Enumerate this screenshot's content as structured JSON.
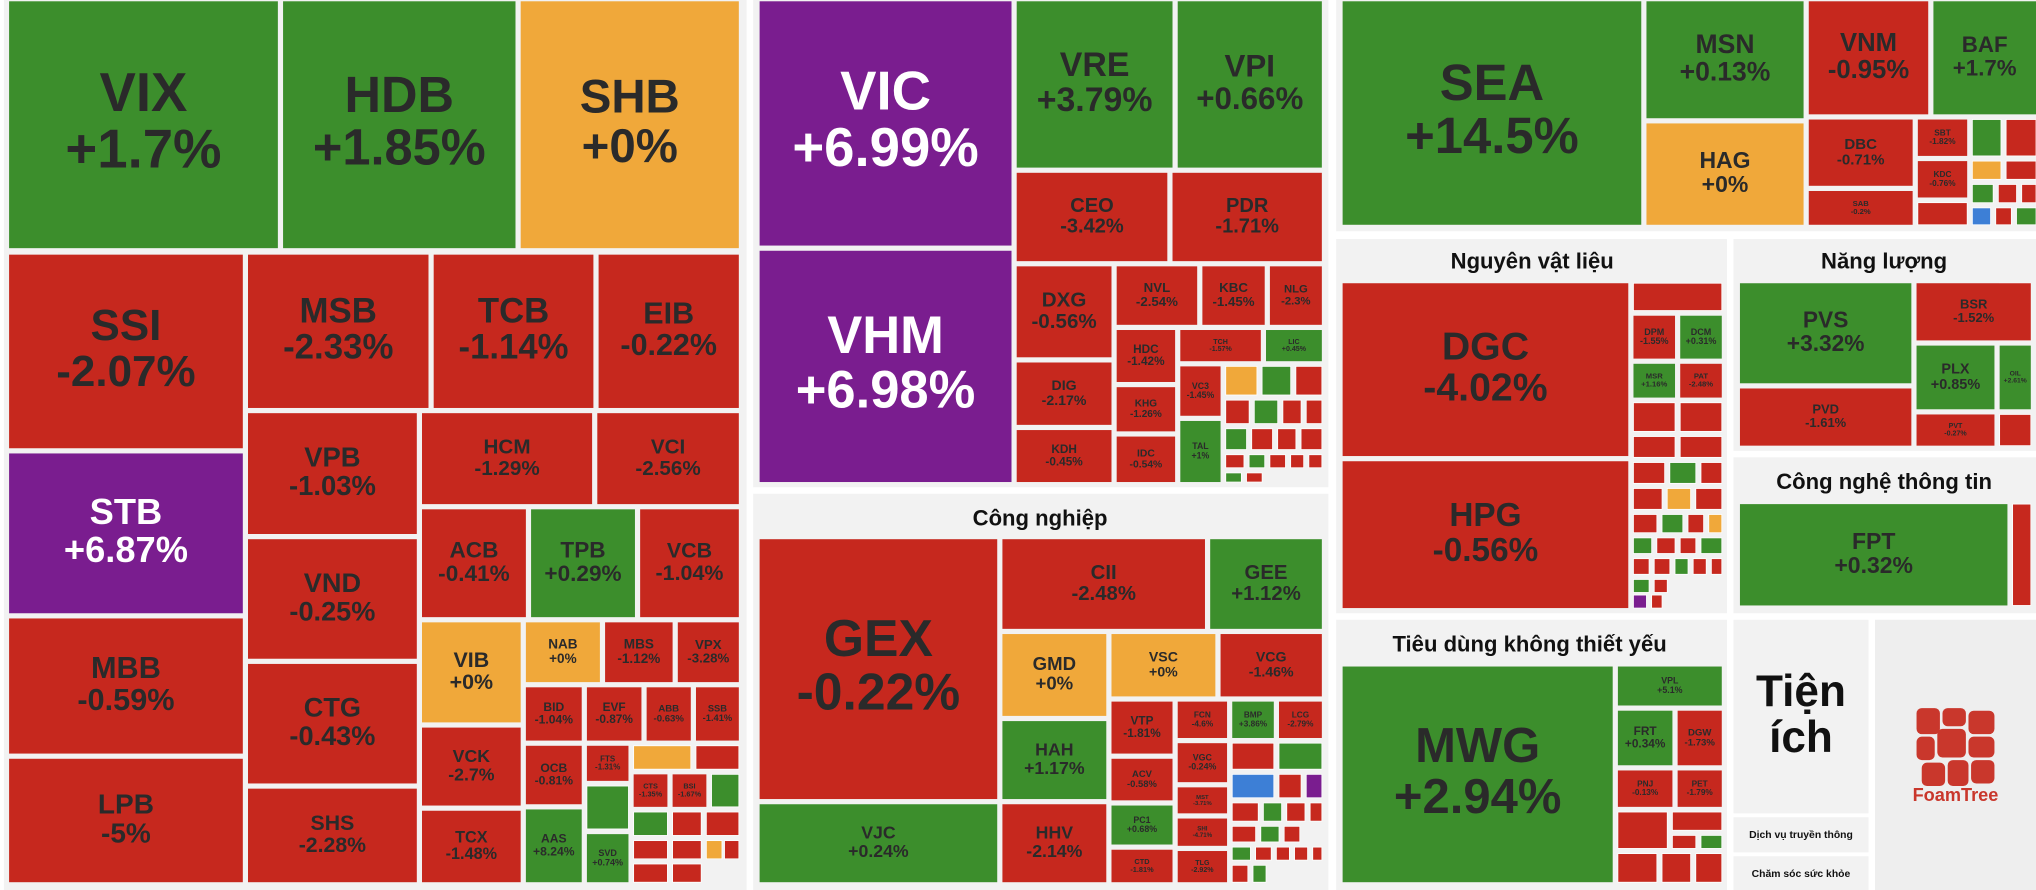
{
  "sectors": [
    {
      "tiles": [
        {
          "ticker": "VIX",
          "change": "+1.7%"
        },
        {
          "ticker": "HDB",
          "change": "+1.85%"
        },
        {
          "ticker": "SHB",
          "change": "+0%"
        },
        {
          "ticker": "SSI",
          "change": "-2.07%"
        },
        {
          "ticker": "MSB",
          "change": "-2.33%"
        },
        {
          "ticker": "TCB",
          "change": "-1.14%"
        },
        {
          "ticker": "EIB",
          "change": "-0.22%"
        },
        {
          "ticker": "STB",
          "change": "+6.87%"
        },
        {
          "ticker": "VPB",
          "change": "-1.03%"
        },
        {
          "ticker": "HCM",
          "change": "-1.29%"
        },
        {
          "ticker": "VCI",
          "change": "-2.56%"
        },
        {
          "ticker": "VND",
          "change": "-0.25%"
        },
        {
          "ticker": "ACB",
          "change": "-0.41%"
        },
        {
          "ticker": "TPB",
          "change": "+0.29%"
        },
        {
          "ticker": "VCB",
          "change": "-1.04%"
        },
        {
          "ticker": "MBB",
          "change": "-0.59%"
        },
        {
          "ticker": "CTG",
          "change": "-0.43%"
        },
        {
          "ticker": "VIB",
          "change": "+0%"
        },
        {
          "ticker": "NAB",
          "change": "+0%"
        },
        {
          "ticker": "MBS",
          "change": "-1.12%"
        },
        {
          "ticker": "VPX",
          "change": "-3.28%"
        },
        {
          "ticker": "BID",
          "change": "-1.04%"
        },
        {
          "ticker": "EVF",
          "change": "-0.87%"
        },
        {
          "ticker": "ABB",
          "change": "-0.63%"
        },
        {
          "ticker": "SSB",
          "change": "-1.41%"
        },
        {
          "ticker": "VCK",
          "change": "-2.7%"
        },
        {
          "ticker": "OCB",
          "change": "-0.81%"
        },
        {
          "ticker": "FTS",
          "change": "-1.31%"
        },
        {
          "ticker": "LPB",
          "change": "-5%"
        },
        {
          "ticker": "SHS",
          "change": "-2.28%"
        },
        {
          "ticker": "TCX",
          "change": "-1.48%"
        },
        {
          "ticker": "AAS",
          "change": "+8.24%"
        },
        {
          "ticker": "SVD",
          "change": "+0.74%"
        },
        {
          "ticker": "CTS",
          "change": "-1.35%"
        },
        {
          "ticker": "BSI",
          "change": "-1.67%"
        }
      ]
    },
    {
      "tiles": [
        {
          "ticker": "VIC",
          "change": "+6.99%"
        },
        {
          "ticker": "VHM",
          "change": "+6.98%"
        },
        {
          "ticker": "VRE",
          "change": "+3.79%"
        },
        {
          "ticker": "VPI",
          "change": "+0.66%"
        },
        {
          "ticker": "CEO",
          "change": "-3.42%"
        },
        {
          "ticker": "PDR",
          "change": "-1.71%"
        },
        {
          "ticker": "DXG",
          "change": "-0.56%"
        },
        {
          "ticker": "NVL",
          "change": "-2.54%"
        },
        {
          "ticker": "KBC",
          "change": "-1.45%"
        },
        {
          "ticker": "NLG",
          "change": "-2.3%"
        },
        {
          "ticker": "HDC",
          "change": "-1.42%"
        },
        {
          "ticker": "TCH",
          "change": "-1.57%"
        },
        {
          "ticker": "LIC",
          "change": "+0.45%"
        },
        {
          "ticker": "DIG",
          "change": "-2.17%"
        },
        {
          "ticker": "KHG",
          "change": "-1.26%"
        },
        {
          "ticker": "VC3",
          "change": "-1.45%"
        },
        {
          "ticker": "KDH",
          "change": "-0.45%"
        },
        {
          "ticker": "IDC",
          "change": "-0.54%"
        },
        {
          "ticker": "TAL",
          "change": "+1%"
        }
      ]
    },
    {
      "title": "Công nghiệp",
      "tiles": [
        {
          "ticker": "GEX",
          "change": "-0.22%"
        },
        {
          "ticker": "VJC",
          "change": "+0.24%"
        },
        {
          "ticker": "CII",
          "change": "-2.48%"
        },
        {
          "ticker": "GEE",
          "change": "+1.12%"
        },
        {
          "ticker": "GMD",
          "change": "+0%"
        },
        {
          "ticker": "VSC",
          "change": "+0%"
        },
        {
          "ticker": "VCG",
          "change": "-1.46%"
        },
        {
          "ticker": "HAH",
          "change": "+1.17%"
        },
        {
          "ticker": "VTP",
          "change": "-1.81%"
        },
        {
          "ticker": "FCN",
          "change": "-4.6%"
        },
        {
          "ticker": "BMP",
          "change": "+3.86%"
        },
        {
          "ticker": "LCG",
          "change": "-2.79%"
        },
        {
          "ticker": "ACV",
          "change": "-0.58%"
        },
        {
          "ticker": "VGC",
          "change": "-0.24%"
        },
        {
          "ticker": "PC1",
          "change": "+0.68%"
        },
        {
          "ticker": "MST",
          "change": "-3.71%"
        },
        {
          "ticker": "HHV",
          "change": "-2.14%"
        },
        {
          "ticker": "CTD",
          "change": "-1.81%"
        },
        {
          "ticker": "SHI",
          "change": "-4.71%"
        },
        {
          "ticker": "TLG",
          "change": "-2.92%"
        }
      ]
    },
    {
      "tiles": [
        {
          "ticker": "SEA",
          "change": "+14.5%"
        },
        {
          "ticker": "MSN",
          "change": "+0.13%"
        },
        {
          "ticker": "VNM",
          "change": "-0.95%"
        },
        {
          "ticker": "BAF",
          "change": "+1.7%"
        },
        {
          "ticker": "HAG",
          "change": "+0%"
        },
        {
          "ticker": "DBC",
          "change": "-0.71%"
        },
        {
          "ticker": "SAB",
          "change": "-0.2%"
        },
        {
          "ticker": "SBT",
          "change": "-1.82%"
        },
        {
          "ticker": "KDC",
          "change": "-0.76%"
        }
      ]
    },
    {
      "title": "Nguyên vật liệu",
      "tiles": [
        {
          "ticker": "DGC",
          "change": "-4.02%"
        },
        {
          "ticker": "HPG",
          "change": "-0.56%"
        },
        {
          "ticker": "DPM",
          "change": "-1.55%"
        },
        {
          "ticker": "DCM",
          "change": "+0.31%"
        },
        {
          "ticker": "MSR",
          "change": "+1.16%"
        },
        {
          "ticker": "PAT",
          "change": "-2.48%"
        }
      ]
    },
    {
      "title": "Năng lượng",
      "tiles": [
        {
          "ticker": "PVS",
          "change": "+3.32%"
        },
        {
          "ticker": "BSR",
          "change": "-1.52%"
        },
        {
          "ticker": "PLX",
          "change": "+0.85%"
        },
        {
          "ticker": "PVD",
          "change": "-1.61%"
        },
        {
          "ticker": "PVT",
          "change": "-0.27%"
        },
        {
          "ticker": "OIL",
          "change": "+2.61%"
        }
      ]
    },
    {
      "title": "Công nghệ thông tin",
      "tiles": [
        {
          "ticker": "FPT",
          "change": "+0.32%"
        }
      ]
    },
    {
      "title": "Tiêu dùng không thiết yếu",
      "tiles": [
        {
          "ticker": "MWG",
          "change": "+2.94%"
        },
        {
          "ticker": "VPL",
          "change": "+5.1%"
        },
        {
          "ticker": "FRT",
          "change": "+0.34%"
        },
        {
          "ticker": "DGW",
          "change": "-1.73%"
        },
        {
          "ticker": "PNJ",
          "change": "-0.13%"
        },
        {
          "ticker": "PET",
          "change": "-1.79%"
        }
      ]
    },
    {
      "title": "Tiện ích"
    },
    {
      "title": "Dịch vụ truyền thông"
    },
    {
      "title": "Chăm sóc sức khỏe"
    }
  ],
  "logo": "FoamTree"
}
